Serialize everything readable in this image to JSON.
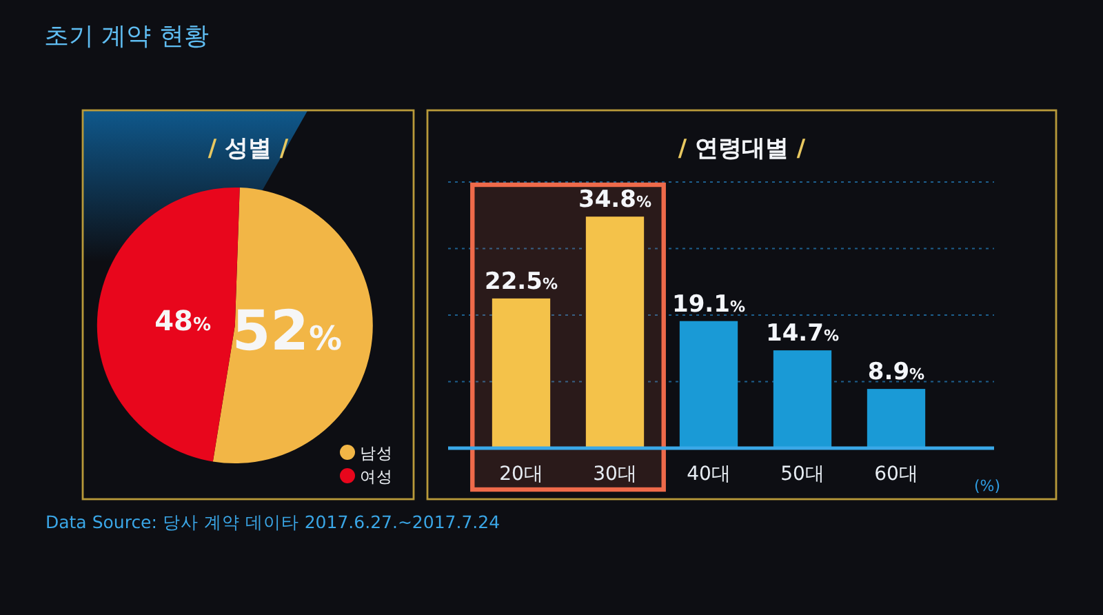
{
  "chart_data": [
    {
      "type": "pie",
      "title": "/ 성별 /",
      "categories": [
        "남성",
        "여성"
      ],
      "values": [
        52,
        48
      ],
      "value_labels": [
        "52%",
        "48%"
      ],
      "colors": [
        "#f2b646",
        "#e8061c"
      ],
      "legend": "bottom right",
      "annotations": [
        "초기 계약 현황",
        "Data Source: 당사 계약 데이타 2017.6.27.~2017.7.24"
      ]
    },
    {
      "type": "bar",
      "title": "/ 연령대별 /",
      "categories": [
        "20대",
        "30대",
        "40대",
        "50대",
        "60대"
      ],
      "values": [
        22.5,
        34.8,
        19.1,
        14.7,
        8.9
      ],
      "value_labels": [
        "22.5%",
        "34.8%",
        "19.1%",
        "14.7%",
        "8.9%"
      ],
      "colors": [
        "#f4c24a",
        "#f4c24a",
        "#1a9ad6",
        "#1a9ad6",
        "#1a9ad6"
      ],
      "ylim": [
        0,
        40
      ],
      "yticks": [
        {
          "value": 10,
          "label": null
        },
        {
          "value": 20,
          "label": null
        },
        {
          "value": 30,
          "label": null
        },
        {
          "value": 40,
          "label": null
        }
      ],
      "tick_labels": "x",
      "grid": "y",
      "bands": [
        {
          "axis": "x",
          "from": "20대",
          "to": "30대",
          "color": "#ee6a4a"
        }
      ],
      "annotations": [
        "(%)"
      ]
    }
  ]
}
